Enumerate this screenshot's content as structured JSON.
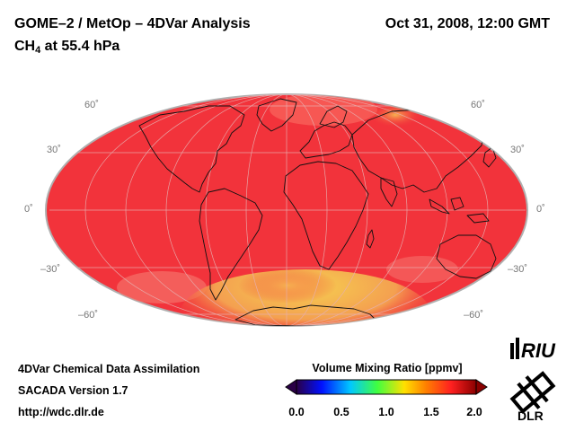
{
  "header": {
    "title": "GOME–2 / MetOp – 4DVar Analysis",
    "date": "Oct 31, 2008, 12:00 GMT",
    "species_main": "CH",
    "species_sub": "4",
    "pressure_text": " at 55.4 hPa"
  },
  "map": {
    "projection": "Hammer-Aitoff",
    "lat_labels_left": [
      "60˚",
      "30˚",
      "0˚",
      "–30˚",
      "–60˚"
    ],
    "lat_labels_right": [
      "60˚",
      "30˚",
      "0˚",
      "–30˚",
      "–60˚"
    ],
    "base_color": "#f2333b",
    "outline_color": "#b0b0b0"
  },
  "colorbar": {
    "title": "Volume Mixing Ratio [ppmv]",
    "ticks": [
      "0.0",
      "0.5",
      "1.0",
      "1.5",
      "2.0"
    ],
    "colors": [
      "#2a0046",
      "#0010ff",
      "#00c8ff",
      "#40ff40",
      "#ffe000",
      "#ff8000",
      "#ff2020",
      "#8a0000"
    ]
  },
  "footer": {
    "line1": "4DVar Chemical Data Assimilation",
    "line2": "SACADA Version 1.7",
    "line3": "http://wdc.dlr.de"
  },
  "logos": {
    "riu": "RIU",
    "dlr": "DLR"
  }
}
